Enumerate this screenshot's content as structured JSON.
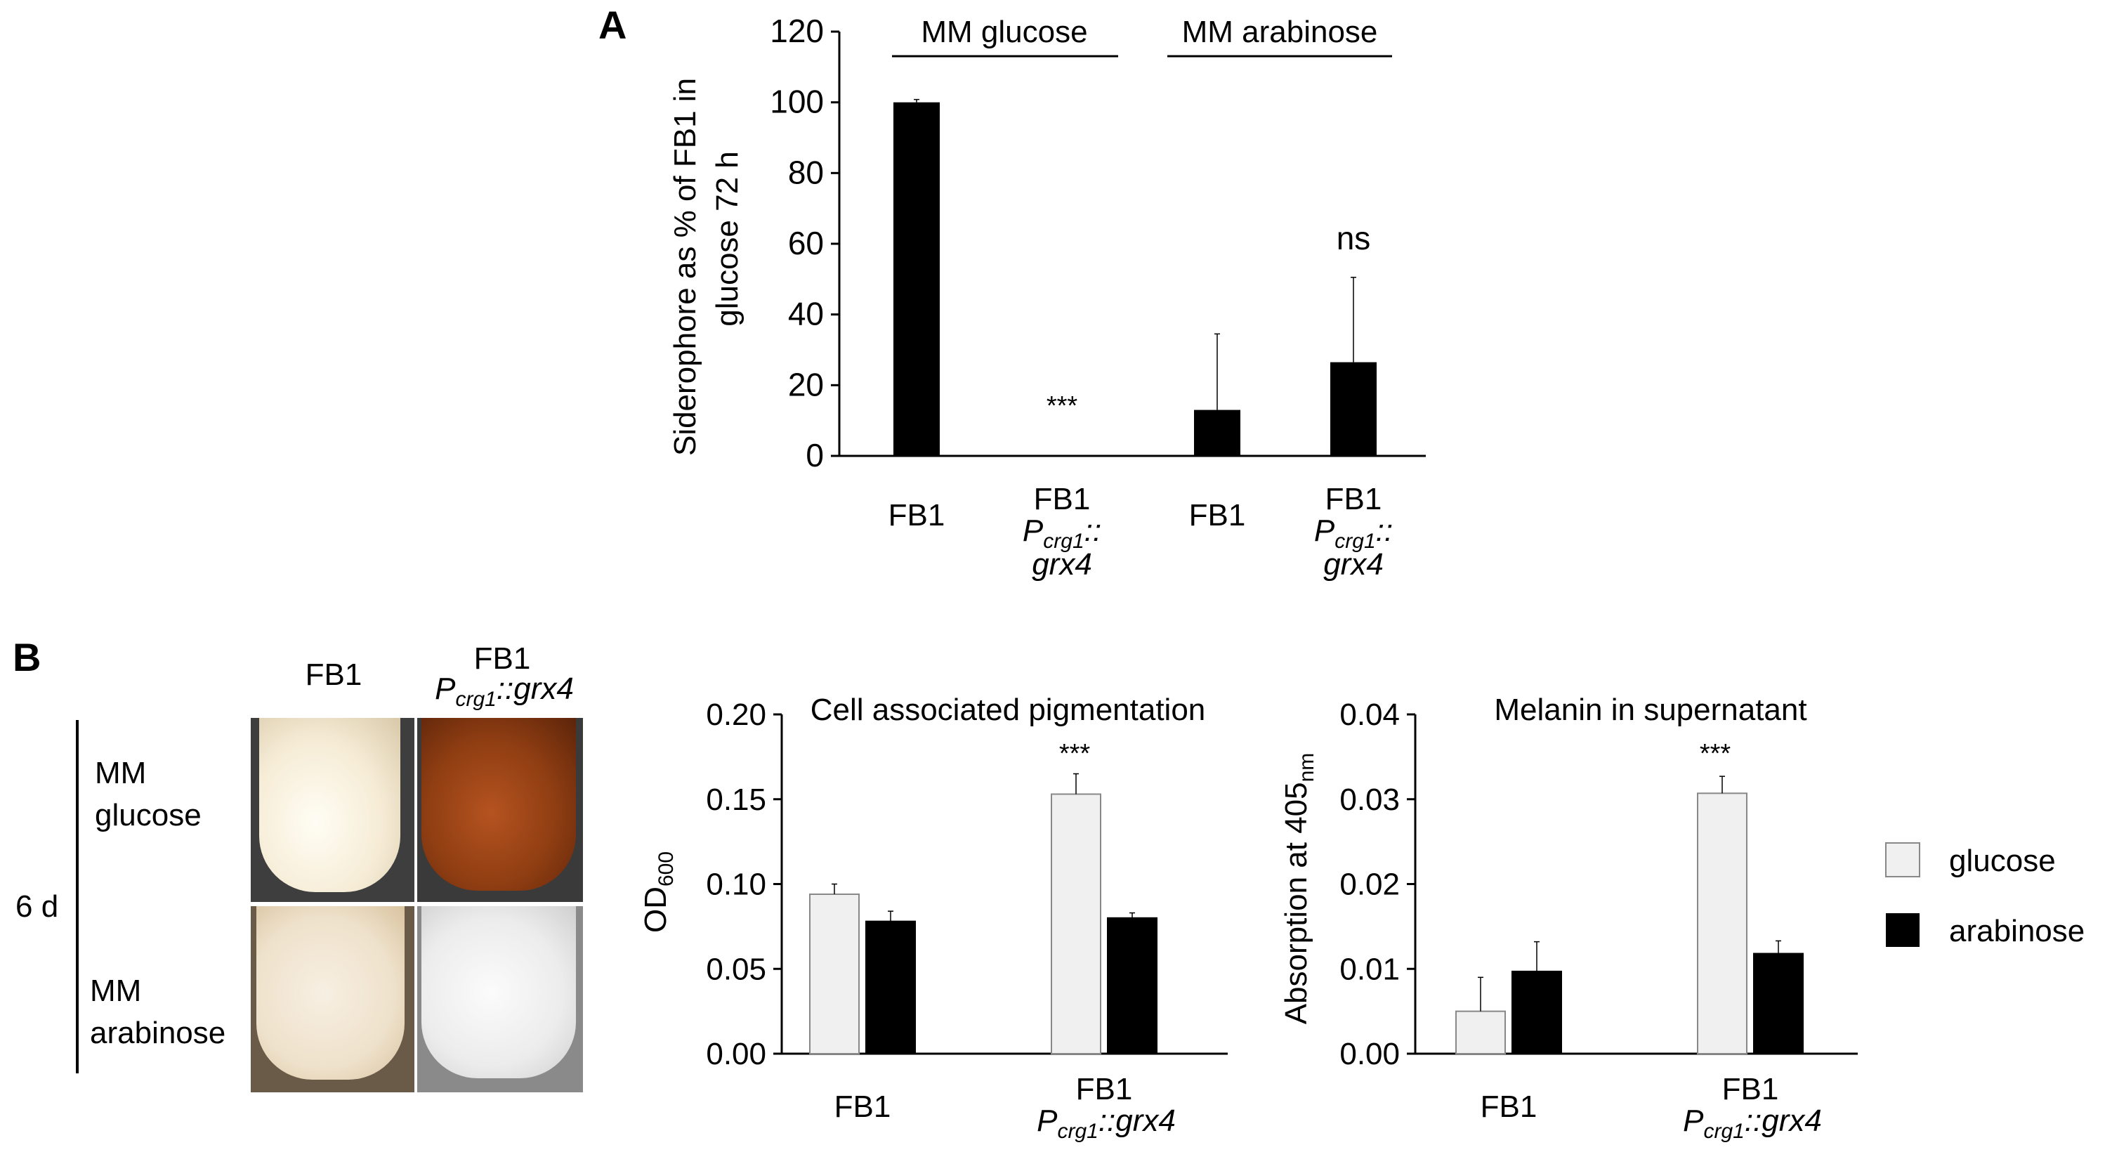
{
  "colors": {
    "glucose_fill": "#f0f0f0",
    "glucose_stroke": "#888888",
    "arabinose_fill": "#000000",
    "bar_black": "#000000",
    "photo_pale": "#f6ecdc",
    "photo_brown": "#8a3a10",
    "photo_bench": "#5a5a5a"
  },
  "panel_a": {
    "label": "A",
    "group_glucose": "MM glucose",
    "group_arabinose": "MM arabinose",
    "ylabel_line1": "Siderophore as % of FB1 in",
    "ylabel_line2": "glucose 72 h",
    "cat1": "FB1",
    "cat2_line1": "FB1",
    "cat2_p": "P",
    "cat2_sub": "crg1",
    "cat2_colons": "::",
    "cat2_gene": "grx4",
    "cat3": "FB1",
    "cat4_line1": "FB1",
    "cat4_p": "P",
    "cat4_sub": "crg1",
    "cat4_colons": "::",
    "cat4_gene": "grx4",
    "sig2": "***",
    "sig4": "ns"
  },
  "panel_b": {
    "label": "B",
    "col1": "FB1",
    "col2_line1": "FB1",
    "col2_p": "P",
    "col2_sub": "crg1",
    "col2_rest": "::grx4",
    "row1_line1": "MM",
    "row1_line2": "glucose",
    "row2_line1": "MM",
    "row2_line2": "arabinose",
    "time": "6 d"
  },
  "panel_c": {
    "title": "Cell associated pigmentation",
    "ylabel_main": "OD",
    "ylabel_sub": "600",
    "cat1": "FB1",
    "cat2_line1": "FB1",
    "cat2_p": "P",
    "cat2_sub": "crg1",
    "cat2_rest": "::grx4",
    "sig": "***"
  },
  "panel_d": {
    "title": "Melanin in supernatant",
    "ylabel_main": "Absorption at 405",
    "ylabel_sub": "nm",
    "cat1": "FB1",
    "cat2_line1": "FB1",
    "cat2_p": "P",
    "cat2_sub": "crg1",
    "cat2_rest": "::grx4",
    "sig": "***"
  },
  "legend": {
    "glucose": "glucose",
    "arabinose": "arabinose"
  },
  "chart_data": [
    {
      "id": "A",
      "type": "bar",
      "title": "",
      "ylabel": "Siderophore as % of FB1 in glucose 72 h",
      "xlabel": "",
      "categories": [
        "FB1 (MM glucose)",
        "FB1 Pcrg1::grx4 (MM glucose)",
        "FB1 (MM arabinose)",
        "FB1 Pcrg1::grx4 (MM arabinose)"
      ],
      "values": [
        100,
        0,
        13,
        26.5
      ],
      "errors": [
        0.8,
        0,
        21.5,
        24
      ],
      "ylim": [
        0,
        120
      ],
      "yticks": [
        0,
        20,
        40,
        60,
        80,
        100,
        120
      ],
      "annotations": [
        "",
        "***",
        "",
        "ns"
      ]
    },
    {
      "id": "B-left",
      "type": "bar",
      "title": "Cell associated pigmentation",
      "ylabel": "OD600",
      "categories": [
        "FB1",
        "FB1 Pcrg1::grx4"
      ],
      "series": [
        {
          "name": "glucose",
          "values": [
            0.094,
            0.153
          ],
          "errors": [
            0.006,
            0.012
          ]
        },
        {
          "name": "arabinose",
          "values": [
            0.078,
            0.08
          ],
          "errors": [
            0.006,
            0.003
          ]
        }
      ],
      "ylim": [
        0,
        0.2
      ],
      "yticks": [
        "0.00",
        "0.05",
        "0.10",
        "0.15",
        "0.20"
      ],
      "annotations": [
        "",
        "***"
      ],
      "legend": "right"
    },
    {
      "id": "B-right",
      "type": "bar",
      "title": "Melanin in supernatant",
      "ylabel": "Absorption at 405nm",
      "categories": [
        "FB1",
        "FB1 Pcrg1::grx4"
      ],
      "series": [
        {
          "name": "glucose",
          "values": [
            0.005,
            0.0307
          ],
          "errors": [
            0.004,
            0.002
          ]
        },
        {
          "name": "arabinose",
          "values": [
            0.0097,
            0.0118
          ],
          "errors": [
            0.0035,
            0.0015
          ]
        }
      ],
      "ylim": [
        0,
        0.04
      ],
      "yticks": [
        "0.00",
        "0.01",
        "0.02",
        "0.03",
        "0.04"
      ],
      "annotations": [
        "",
        "***"
      ],
      "legend": "right"
    }
  ]
}
